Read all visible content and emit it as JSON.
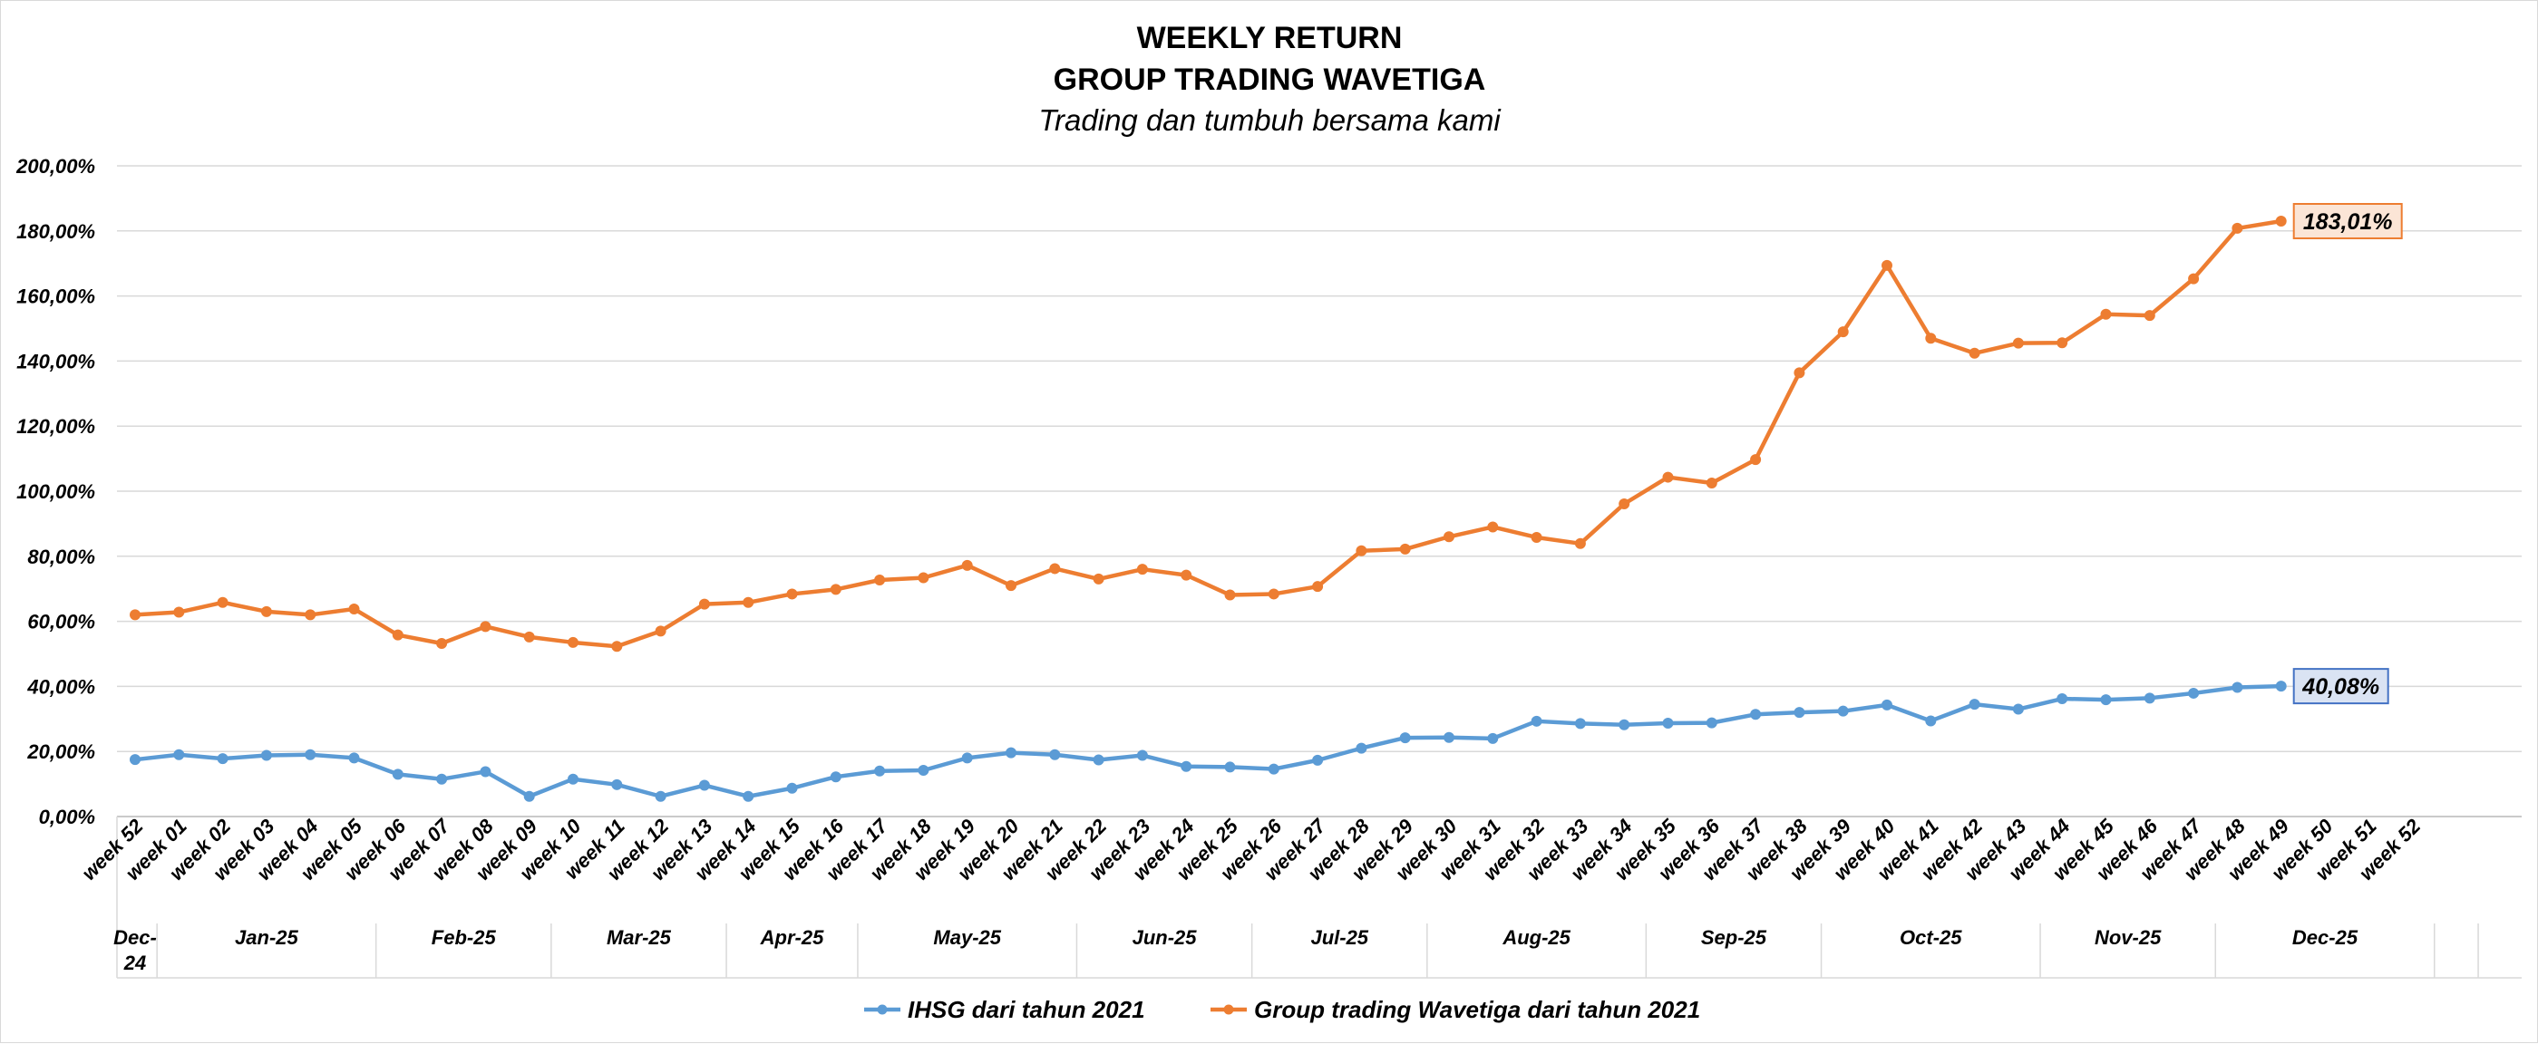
{
  "chart_data": {
    "type": "line",
    "title": "WEEKLY RETURN",
    "title_line2": "GROUP TRADING WAVETIGA",
    "subtitle": "Trading dan tumbuh bersama kami",
    "xlabel": "",
    "ylabel": "",
    "ylim": [
      0,
      200
    ],
    "yticks": [
      "0,00%",
      "20,00%",
      "40,00%",
      "60,00%",
      "80,00%",
      "100,00%",
      "120,00%",
      "140,00%",
      "160,00%",
      "180,00%",
      "200,00%"
    ],
    "grid": true,
    "legend_position": "bottom",
    "categories": [
      "week 52",
      "week 01",
      "week 02",
      "week 03",
      "week 04",
      "week 05",
      "week 06",
      "week 07",
      "week 08",
      "week 09",
      "week 10",
      "week 11",
      "week 12",
      "week 13",
      "week 14",
      "week 15",
      "week 16",
      "week 17",
      "week 18",
      "week 19",
      "week 20",
      "week 21",
      "week 22",
      "week 23",
      "week 24",
      "week 25",
      "week 26",
      "week 27",
      "week 28",
      "week 29",
      "week 30",
      "week 31",
      "week 32",
      "week 33",
      "week 34",
      "week 35",
      "week 36",
      "week 37",
      "week 38",
      "week 39",
      "week 40",
      "week 41",
      "week 42",
      "week 43",
      "week 44",
      "week 45",
      "week 46",
      "week 47",
      "week 48",
      "week 49",
      "week 50",
      "week 51",
      "week 52"
    ],
    "months": [
      {
        "label": "Dec-24",
        "lines": [
          "Dec-",
          "24"
        ],
        "span": 1
      },
      {
        "label": "Jan-25",
        "lines": [
          "Jan-25"
        ],
        "span": 5
      },
      {
        "label": "Feb-25",
        "lines": [
          "Feb-25"
        ],
        "span": 4
      },
      {
        "label": "Mar-25",
        "lines": [
          "Mar-25"
        ],
        "span": 4
      },
      {
        "label": "Apr-25",
        "lines": [
          "Apr-25"
        ],
        "span": 3
      },
      {
        "label": "May-25",
        "lines": [
          "May-25"
        ],
        "span": 5
      },
      {
        "label": "Jun-25",
        "lines": [
          "Jun-25"
        ],
        "span": 4
      },
      {
        "label": "Jul-25",
        "lines": [
          "Jul-25"
        ],
        "span": 4
      },
      {
        "label": "Aug-25",
        "lines": [
          "Aug-25"
        ],
        "span": 5
      },
      {
        "label": "Sep-25",
        "lines": [
          "Sep-25"
        ],
        "span": 4
      },
      {
        "label": "Oct-25",
        "lines": [
          "Oct-25"
        ],
        "span": 5
      },
      {
        "label": "Nov-25",
        "lines": [
          "Nov-25"
        ],
        "span": 4
      },
      {
        "label": "Dec-25",
        "lines": [
          "Dec-25"
        ],
        "span": 5
      },
      {
        "label": "",
        "lines": [
          ""
        ],
        "span": 1
      }
    ],
    "series": [
      {
        "name": "IHSG dari tahun 2021",
        "color": "#5B9BD5",
        "end_label": "40,08%",
        "label_fill": "#DAE3F3",
        "label_border": "#4472C4",
        "values": [
          17.5,
          19,
          17.8,
          18.8,
          19,
          18,
          13,
          11.5,
          13.8,
          6.2,
          11.5,
          9.8,
          6.2,
          9.6,
          6.2,
          8.7,
          12.2,
          14,
          14.2,
          18,
          19.6,
          19,
          17.4,
          18.8,
          15.4,
          15.2,
          14.6,
          17.3,
          21,
          24.2,
          24.3,
          24,
          29.3,
          28.6,
          28.2,
          28.7,
          28.8,
          31.4,
          32,
          32.4,
          34.3,
          29.4,
          34.5,
          33,
          36.2,
          35.9,
          36.4,
          37.9,
          39.7,
          40.08,
          null,
          null,
          null
        ]
      },
      {
        "name": "Group trading Wavetiga dari tahun 2021",
        "color": "#ED7D31",
        "end_label": "183,01%",
        "label_fill": "#FBE5D6",
        "label_border": "#ED7D31",
        "values": [
          62,
          62.8,
          65.8,
          63,
          62,
          63.8,
          55.8,
          53.2,
          58.4,
          55.2,
          53.5,
          52.3,
          57,
          65.3,
          65.8,
          68.4,
          69.8,
          72.7,
          73.4,
          77.2,
          71,
          76.2,
          73,
          76,
          74.2,
          68.1,
          68.4,
          70.7,
          81.7,
          82.2,
          86,
          89,
          85.8,
          83.9,
          96.1,
          104.3,
          102.5,
          109.7,
          136.4,
          149,
          169.4,
          147,
          142.4,
          145.5,
          145.6,
          154.4,
          154,
          165.3,
          180.8,
          183.01,
          null,
          null,
          null
        ]
      }
    ]
  }
}
